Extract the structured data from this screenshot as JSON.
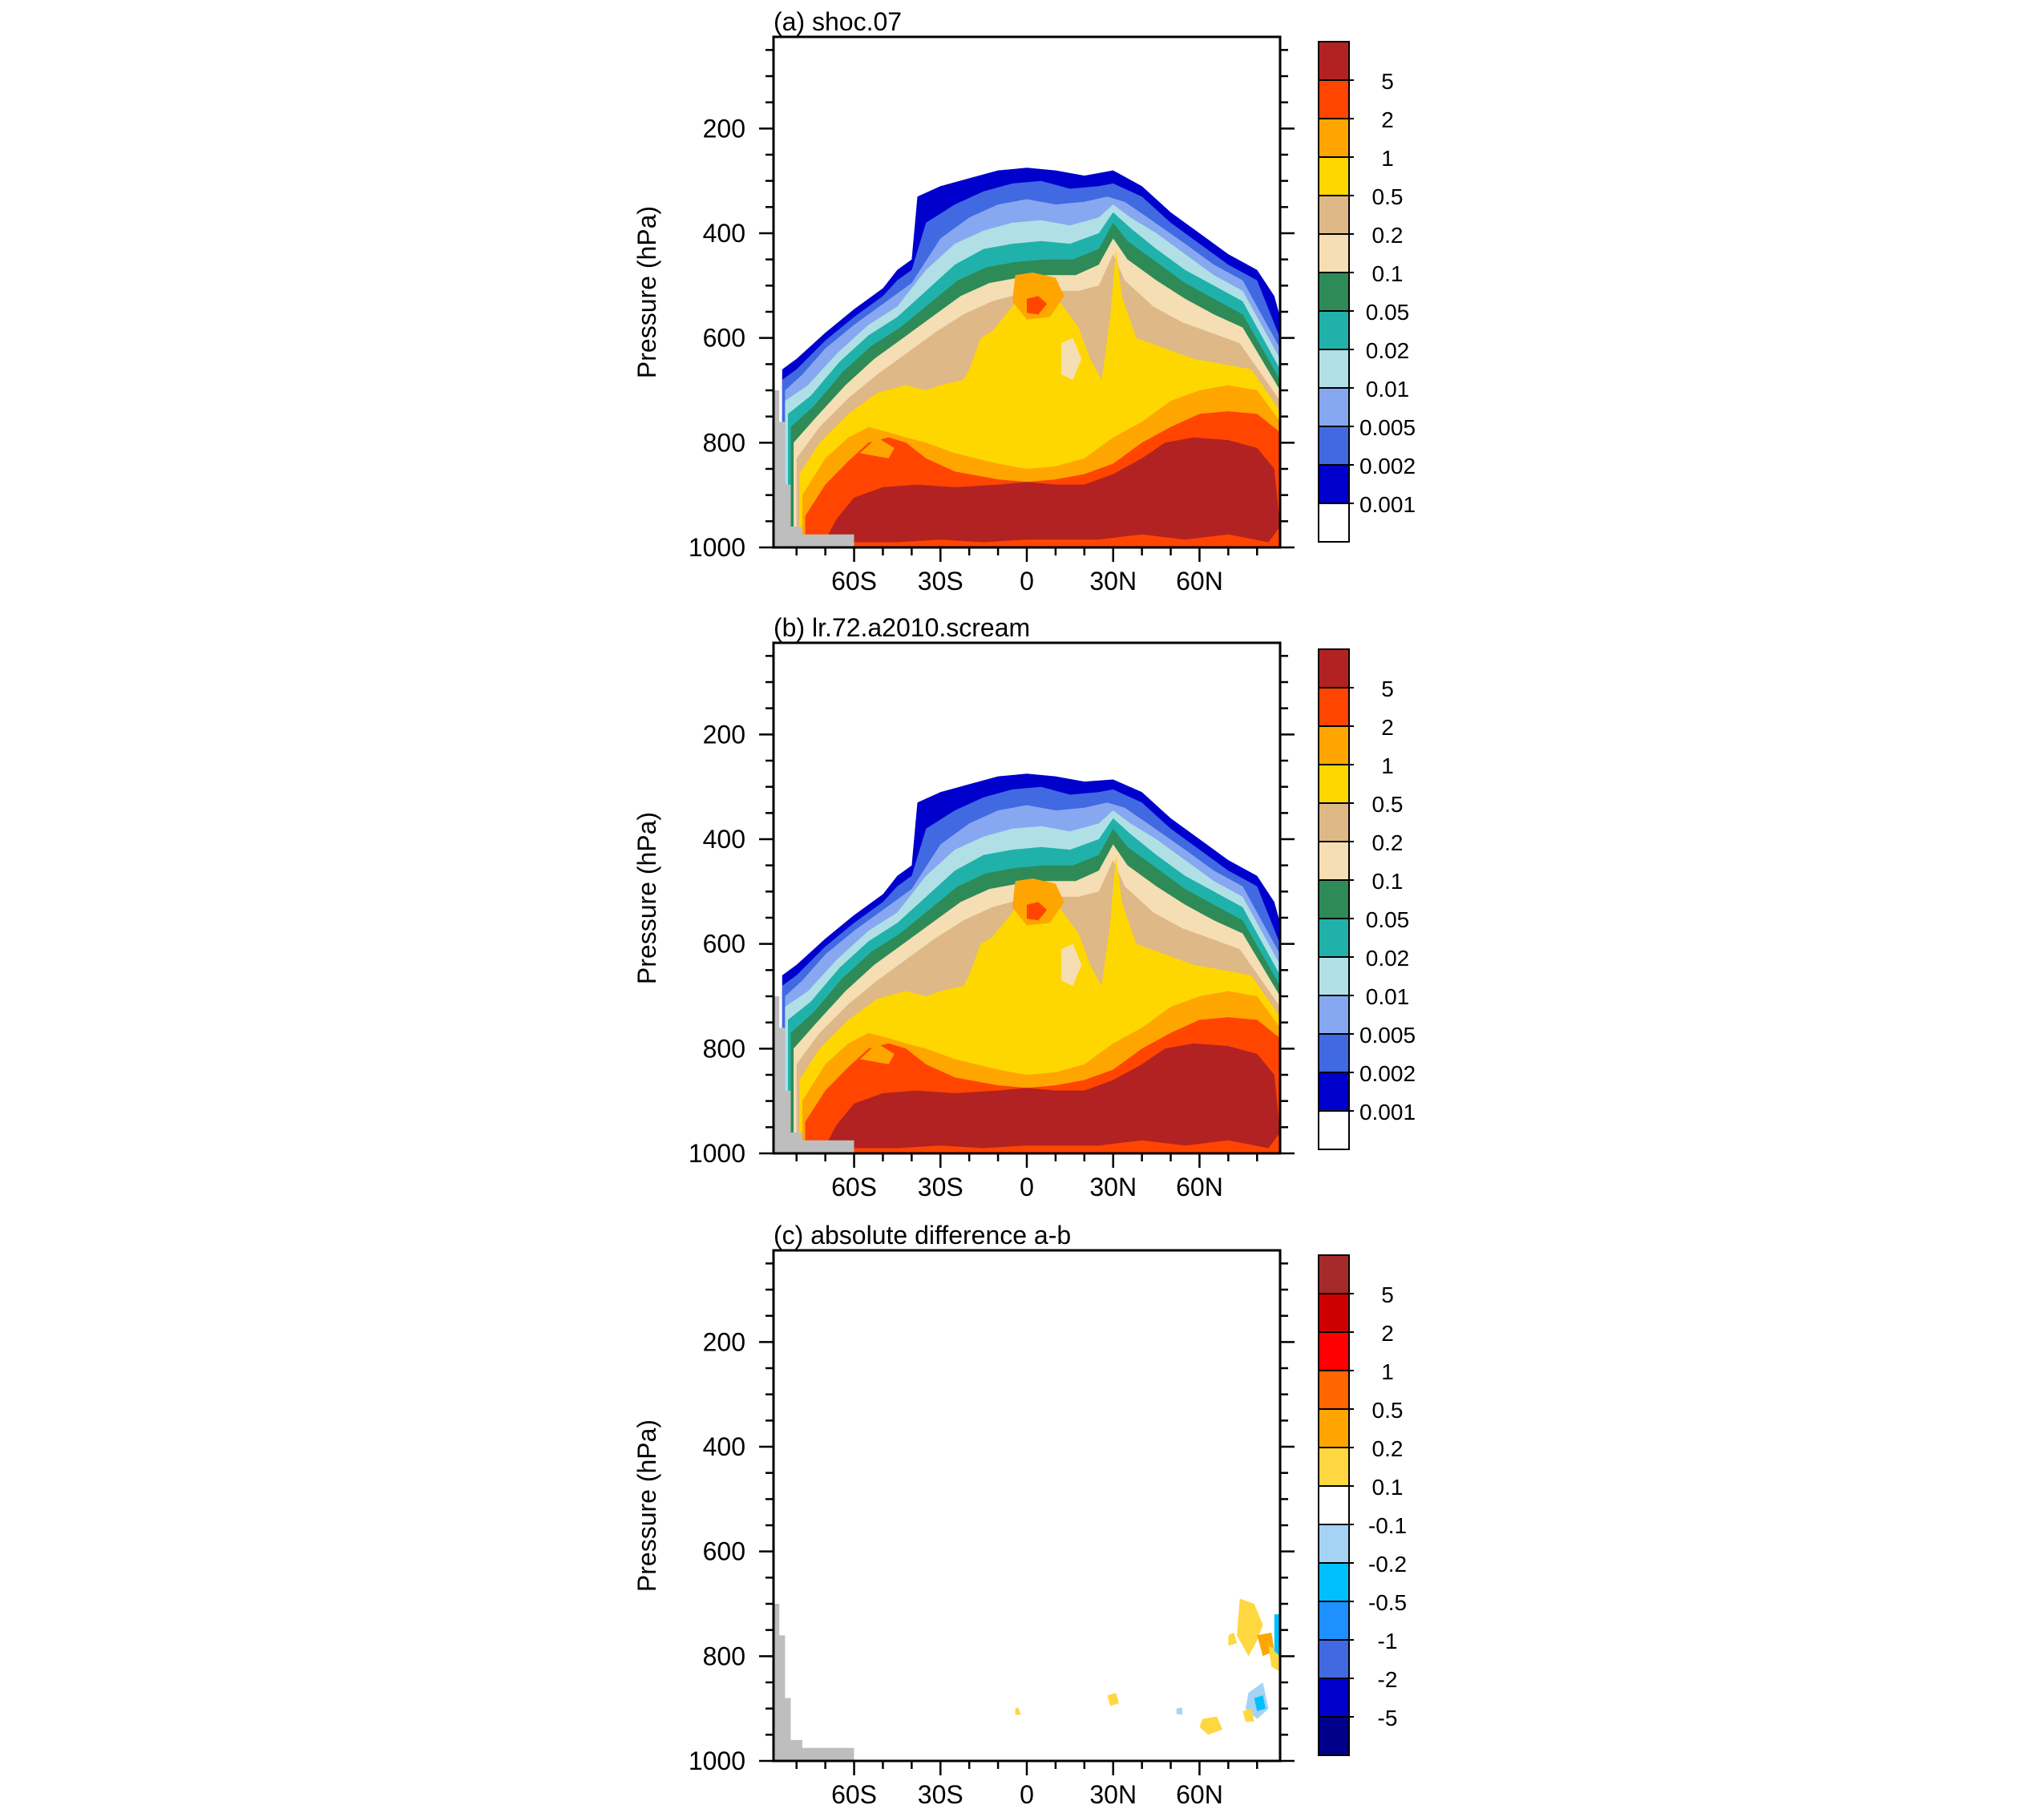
{
  "chart_data": [
    {
      "type": "contour",
      "title": "(a) shoc.07",
      "ylabel": "Pressure (hPa)",
      "xlabel": "",
      "y_ticks": [
        "200",
        "400",
        "600",
        "800",
        "1000"
      ],
      "x_ticks": [
        "60S",
        "30S",
        "0",
        "30N",
        "60N"
      ],
      "ylim": [
        1000,
        25
      ],
      "xlim": [
        "90S",
        "90N"
      ],
      "colorbar_labels": [
        "5",
        "2",
        "1",
        "0.5",
        "0.2",
        "0.1",
        "0.05",
        "0.02",
        "0.01",
        "0.005",
        "0.002",
        "0.001"
      ],
      "colorbar_colors": [
        "#b22222",
        "#ff4500",
        "#ffa500",
        "#ffd700",
        "#deb887",
        "#f5deb3",
        "#2e8b57",
        "#20b2aa",
        "#b0e0e6",
        "#87a8f0",
        "#4169e1",
        "#0000cd",
        "#ffffff"
      ]
    },
    {
      "type": "contour",
      "title": "(b) lr.72.a2010.scream",
      "ylabel": "Pressure (hPa)",
      "xlabel": "",
      "y_ticks": [
        "200",
        "400",
        "600",
        "800",
        "1000"
      ],
      "x_ticks": [
        "60S",
        "30S",
        "0",
        "30N",
        "60N"
      ],
      "ylim": [
        1000,
        25
      ],
      "xlim": [
        "90S",
        "90N"
      ],
      "colorbar_labels": [
        "5",
        "2",
        "1",
        "0.5",
        "0.2",
        "0.1",
        "0.05",
        "0.02",
        "0.01",
        "0.005",
        "0.002",
        "0.001"
      ],
      "colorbar_colors": [
        "#b22222",
        "#ff4500",
        "#ffa500",
        "#ffd700",
        "#deb887",
        "#f5deb3",
        "#2e8b57",
        "#20b2aa",
        "#b0e0e6",
        "#87a8f0",
        "#4169e1",
        "#0000cd",
        "#ffffff"
      ]
    },
    {
      "type": "contour",
      "title": "(c) absolute difference a-b",
      "ylabel": "Pressure (hPa)",
      "xlabel": "",
      "y_ticks": [
        "200",
        "400",
        "600",
        "800",
        "1000"
      ],
      "x_ticks": [
        "60S",
        "30S",
        "0",
        "30N",
        "60N"
      ],
      "ylim": [
        1000,
        25
      ],
      "xlim": [
        "90S",
        "90N"
      ],
      "colorbar_labels": [
        "5",
        "2",
        "1",
        "0.5",
        "0.2",
        "0.1",
        "-0.1",
        "-0.2",
        "-0.5",
        "-1",
        "-2",
        "-5"
      ],
      "colorbar_colors": [
        "#a52a2a",
        "#cc0000",
        "#ff0000",
        "#ff6600",
        "#ffa500",
        "#ffd740",
        "#ffffff",
        "#a4d3f5",
        "#00bfff",
        "#1e90ff",
        "#4169e1",
        "#0000cd",
        "#00008b"
      ]
    }
  ]
}
